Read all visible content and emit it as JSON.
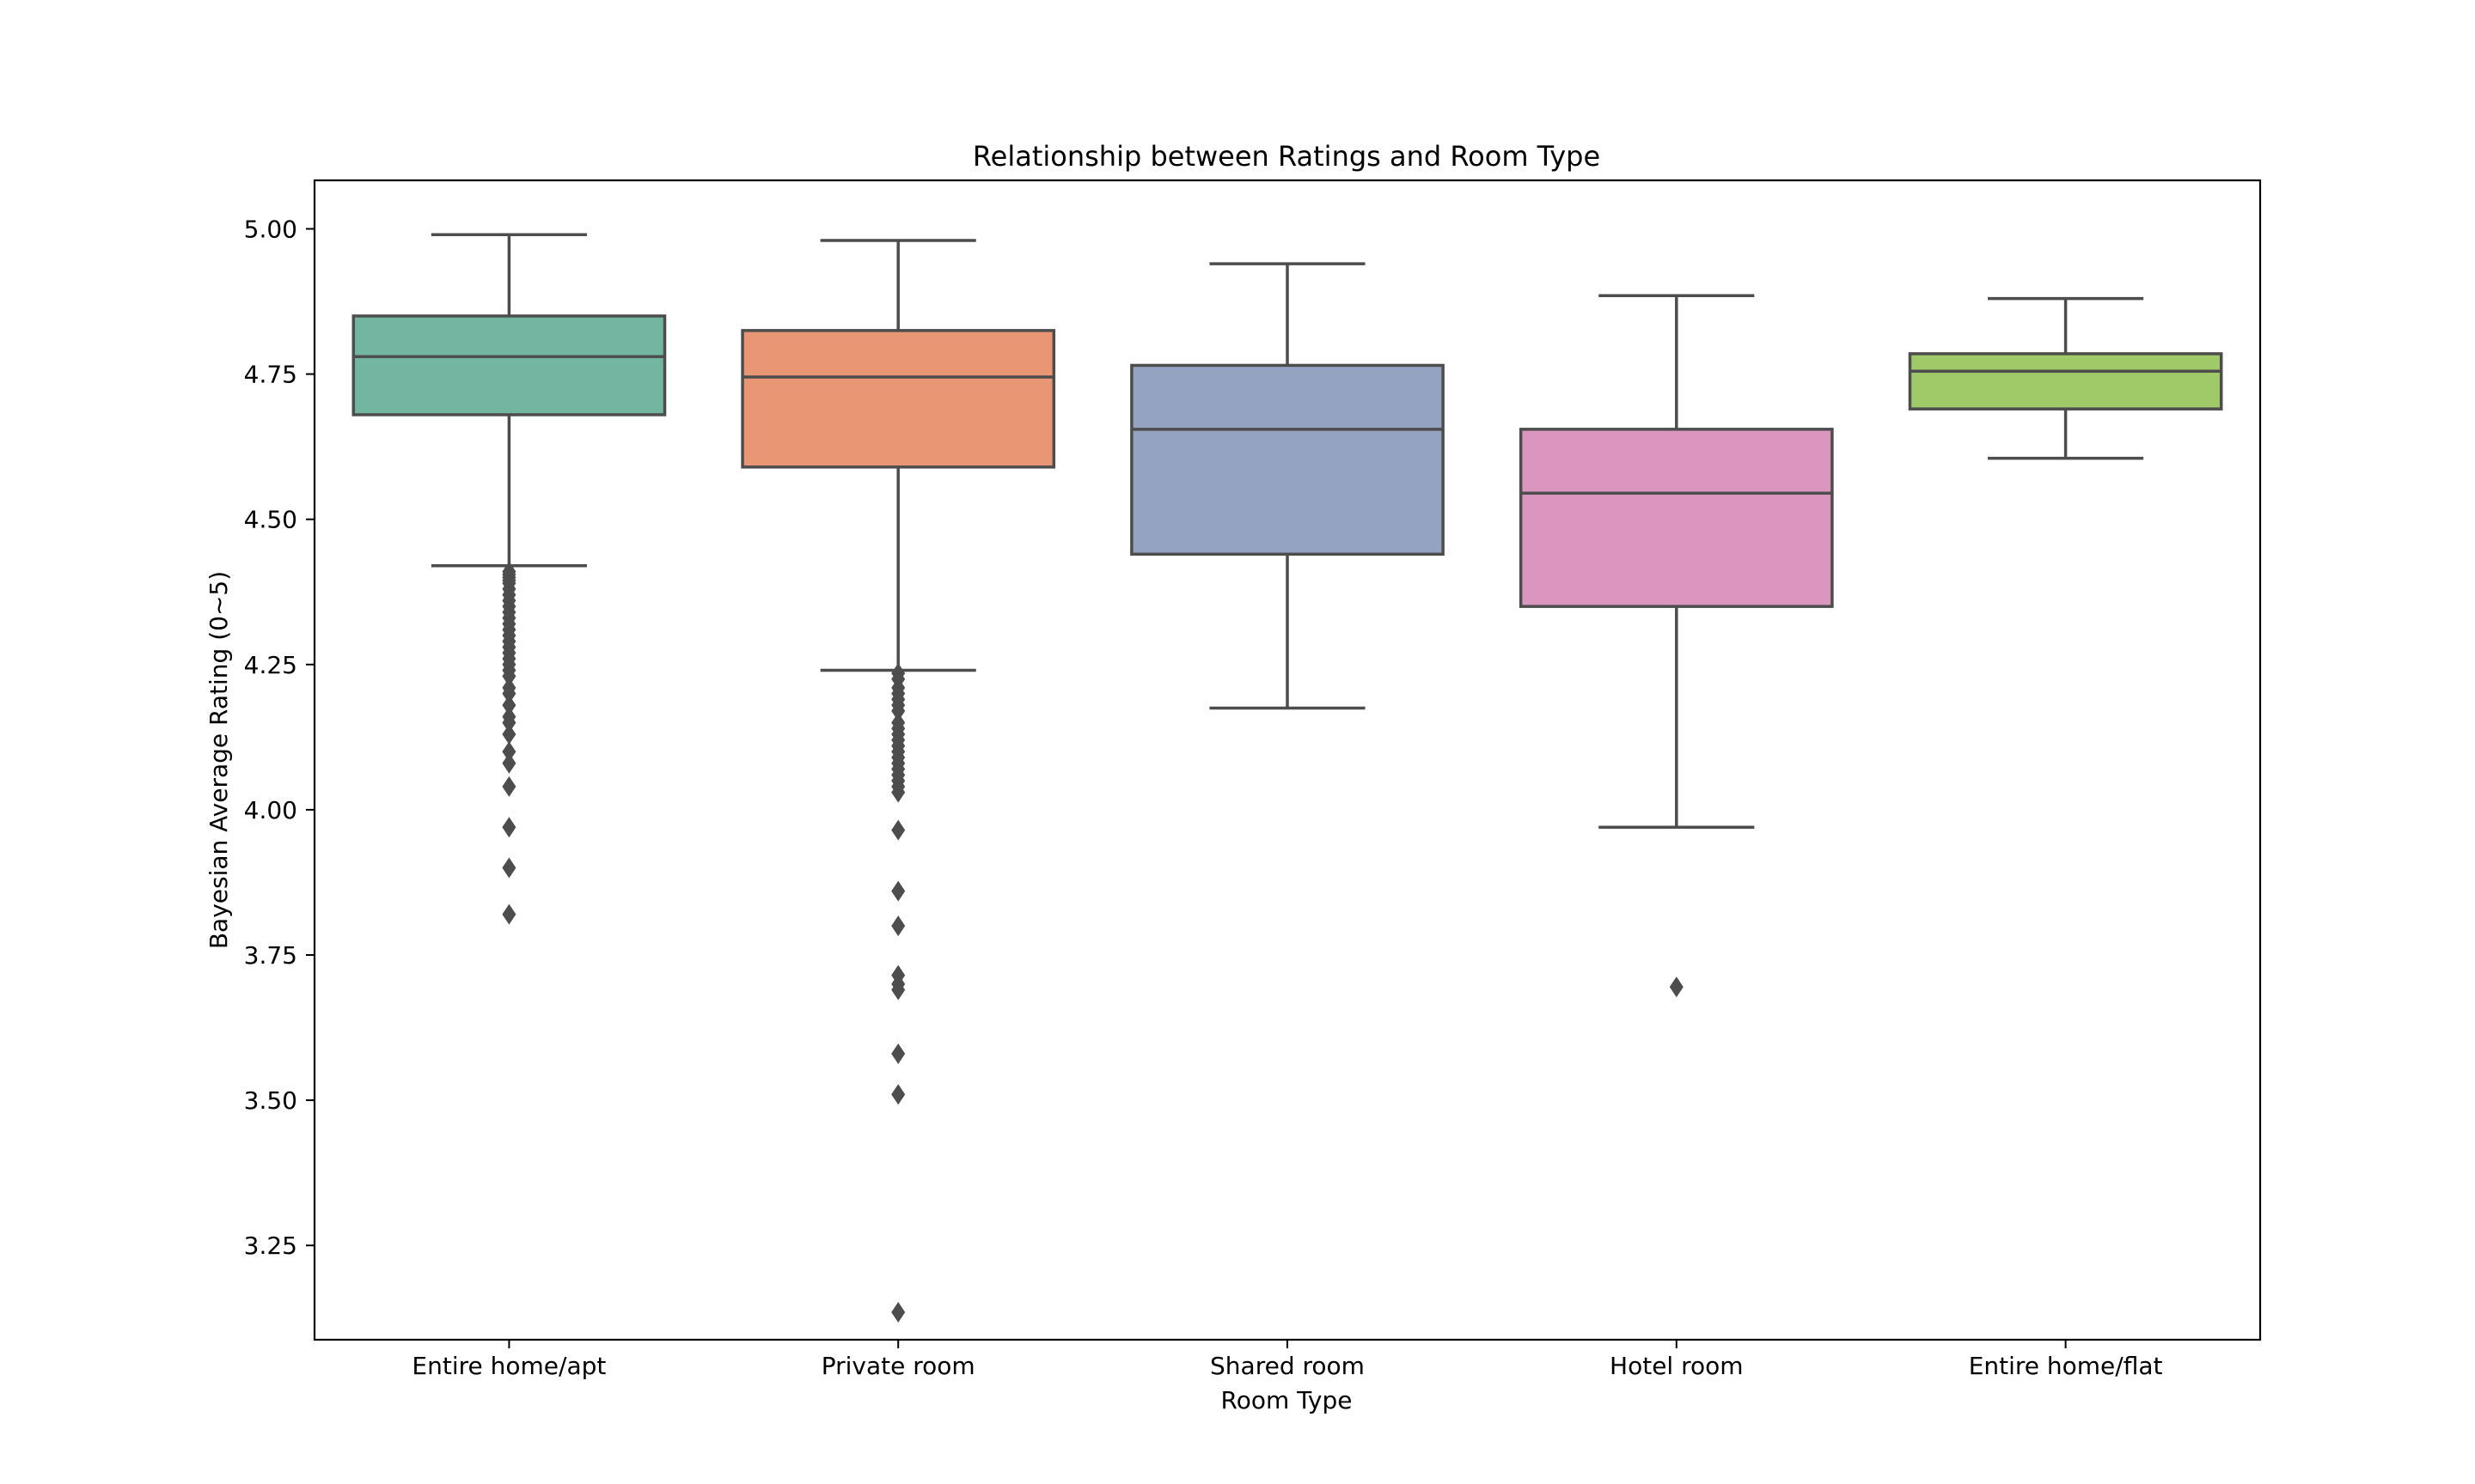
{
  "chart_data": {
    "type": "box",
    "title": "Relationship between Ratings and Room Type",
    "xlabel": "Room Type",
    "ylabel": "Bayesian Average Rating (0~5)",
    "ylim": [
      3.0877,
      5.0835
    ],
    "yticks": [
      "3.25",
      "3.50",
      "3.75",
      "4.00",
      "4.25",
      "4.50",
      "4.75",
      "5.00"
    ],
    "grid": false,
    "legend": "none",
    "categories": [
      "Entire home/apt",
      "Private room",
      "Shared room",
      "Hotel room",
      "Entire home/flat"
    ],
    "boxes": [
      {
        "category": "Entire home/apt",
        "whisker_low": 4.42,
        "q1": 4.68,
        "median": 4.78,
        "q3": 4.85,
        "whisker_high": 4.99,
        "outliers": [
          4.41,
          4.405,
          4.4,
          4.395,
          4.39,
          4.38,
          4.37,
          4.36,
          4.35,
          4.34,
          4.33,
          4.32,
          4.31,
          4.3,
          4.29,
          4.28,
          4.27,
          4.26,
          4.25,
          4.24,
          4.23,
          4.21,
          4.2,
          4.18,
          4.16,
          4.15,
          4.13,
          4.1,
          4.08,
          4.04,
          3.97,
          3.9,
          3.82
        ],
        "color": "#72b6a1"
      },
      {
        "category": "Private room",
        "whisker_low": 4.24,
        "q1": 4.59,
        "median": 4.745,
        "q3": 4.825,
        "whisker_high": 4.98,
        "outliers": [
          4.235,
          4.225,
          4.21,
          4.2,
          4.19,
          4.18,
          4.17,
          4.15,
          4.14,
          4.13,
          4.12,
          4.11,
          4.1,
          4.09,
          4.08,
          4.07,
          4.06,
          4.05,
          4.04,
          4.03,
          3.965,
          3.86,
          3.8,
          3.715,
          3.7,
          3.69,
          3.58,
          3.51,
          3.135
        ],
        "color": "#e99675"
      },
      {
        "category": "Shared room",
        "whisker_low": 4.175,
        "q1": 4.44,
        "median": 4.655,
        "q3": 4.765,
        "whisker_high": 4.94,
        "outliers": [],
        "color": "#95a3c3"
      },
      {
        "category": "Hotel room",
        "whisker_low": 3.97,
        "q1": 4.35,
        "median": 4.545,
        "q3": 4.655,
        "whisker_high": 4.885,
        "outliers": [
          3.695
        ],
        "color": "#db96c0"
      },
      {
        "category": "Entire home/flat",
        "whisker_low": 4.605,
        "q1": 4.69,
        "median": 4.755,
        "q3": 4.785,
        "whisker_high": 4.88,
        "outliers": [],
        "color": "#a0c968"
      }
    ],
    "line_color": "#4d4d4d"
  }
}
